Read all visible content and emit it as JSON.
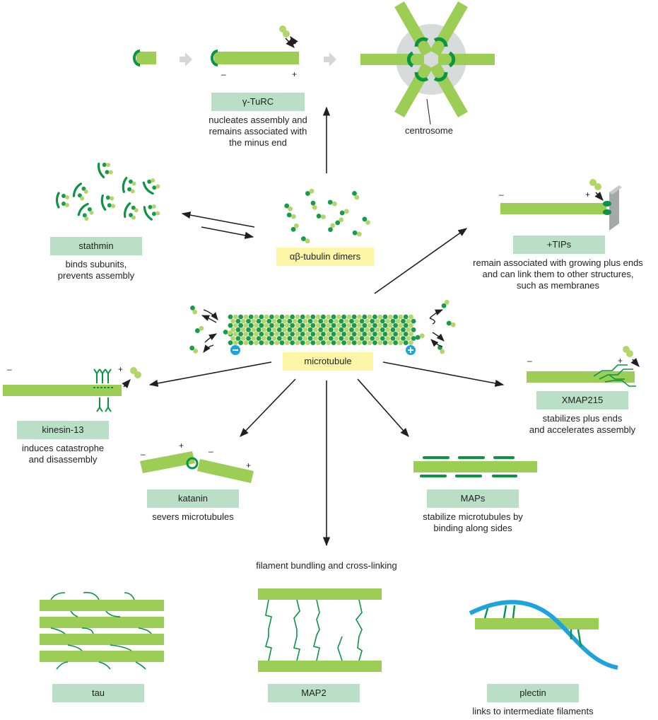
{
  "colors": {
    "filament": "#9ccd55",
    "protein_dark": "#0b9444",
    "tubulin_light": "#b3d66a",
    "tubulin_dark": "#189b4a",
    "label_green": "#b9dfc7",
    "label_yellow": "#fdf6a6",
    "plectin_filament": "#1ea3dd",
    "centrosome_gray": "#d8dbdb",
    "membrane_gray": "#a5a9a9",
    "arrow": "#231f20",
    "ghost_arrow": "#d4d7d7"
  },
  "center": {
    "label": "αβ-tubulin dimers",
    "microtubule_label": "microtubule"
  },
  "gamma_turc": {
    "label": "γ-TuRC",
    "description": "nucleates assembly and\nremains associated with\nthe minus end",
    "centrosome_label": "centrosome",
    "minus": "–",
    "plus": "+"
  },
  "stathmin": {
    "label": "stathmin",
    "description": "binds subunits,\nprevents assembly"
  },
  "tips": {
    "label": "+TIPs",
    "description": "remain associated with growing plus ends\nand can link them to other structures,\nsuch as membranes",
    "minus": "–",
    "plus": "+"
  },
  "kinesin": {
    "label": "kinesin-13",
    "description": "induces catastrophe\nand disassembly",
    "minus": "–",
    "plus": "+"
  },
  "katanin": {
    "label": "katanin",
    "description": "severs microtubules",
    "minus": "–",
    "plus": "+"
  },
  "maps": {
    "label": "MAPs",
    "description": "stabilize microtubules by\nbinding along sides"
  },
  "xmap": {
    "label": "XMAP215",
    "description": "stabilizes plus ends\nand accelerates assembly",
    "minus": "–",
    "plus": "+"
  },
  "bundling": {
    "caption": "filament bundling and cross-linking",
    "tau_label": "tau",
    "map2_label": "MAP2",
    "plectin_label": "plectin",
    "plectin_description": "links to intermediate filaments"
  },
  "icons": {
    "minus_end_cap": "minus-end-cap-icon",
    "plus_end_cap": "plus-end-cap-icon"
  }
}
